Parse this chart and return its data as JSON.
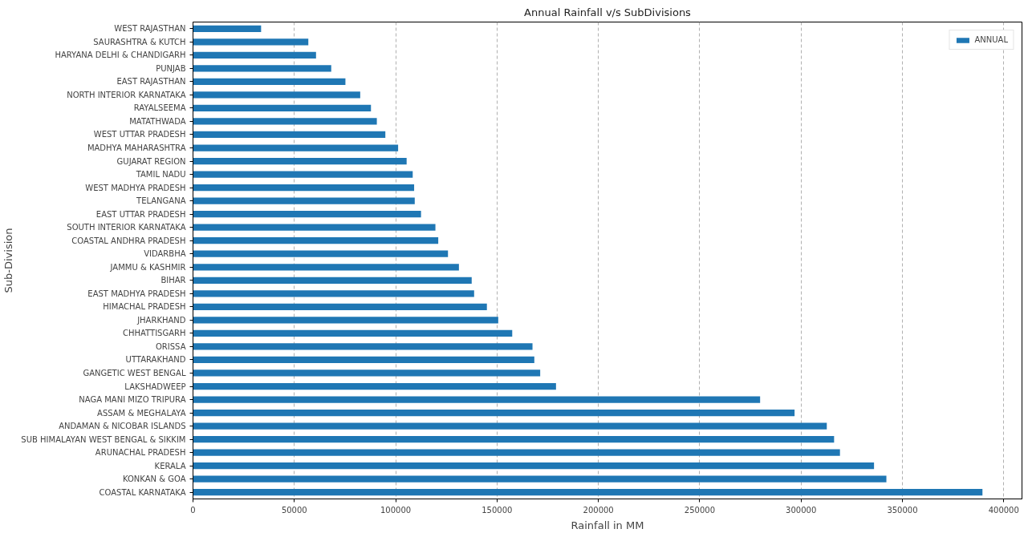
{
  "chart_data": {
    "type": "bar",
    "orientation": "horizontal",
    "title": "Annual Rainfall v/s SubDivisions",
    "xlabel": "Rainfall in MM",
    "ylabel": "Sub-Division",
    "categories": [
      "WEST RAJASTHAN",
      "SAURASHTRA & KUTCH",
      "HARYANA DELHI & CHANDIGARH",
      "PUNJAB",
      "EAST RAJASTHAN",
      "NORTH INTERIOR KARNATAKA",
      "RAYALSEEMA",
      "MATATHWADA",
      "WEST UTTAR PRADESH",
      "MADHYA MAHARASHTRA",
      "GUJARAT REGION",
      "TAMIL NADU",
      "WEST MADHYA PRADESH",
      "TELANGANA",
      "EAST UTTAR PRADESH",
      "SOUTH INTERIOR KARNATAKA",
      "COASTAL ANDHRA PRADESH",
      "VIDARBHA",
      "JAMMU & KASHMIR",
      "BIHAR",
      "EAST MADHYA PRADESH",
      "HIMACHAL PRADESH",
      "JHARKHAND",
      "CHHATTISGARH",
      "ORISSA",
      "UTTARAKHAND",
      "GANGETIC WEST BENGAL",
      "LAKSHADWEEP",
      "NAGA MANI MIZO TRIPURA",
      "ASSAM & MEGHALAYA",
      "ANDAMAN & NICOBAR ISLANDS",
      "SUB HIMALAYAN WEST BENGAL & SIKKIM",
      "ARUNACHAL PRADESH",
      "KERALA",
      "KONKAN & GOA",
      "COASTAL KARNATAKA"
    ],
    "series": [
      {
        "name": "ANNUAL",
        "color": "#1f77b4",
        "values": [
          33600,
          56900,
          60700,
          68200,
          75200,
          82500,
          87800,
          90700,
          94900,
          101200,
          105400,
          108400,
          109100,
          109400,
          112500,
          119600,
          121000,
          125800,
          131200,
          137500,
          138700,
          145000,
          150600,
          157500,
          167500,
          168400,
          171300,
          179100,
          279800,
          296800,
          312700,
          316300,
          319200,
          336000,
          342100,
          389500
        ]
      }
    ],
    "xlim": [
      0,
      409000
    ],
    "xticks": [
      0,
      50000,
      100000,
      150000,
      200000,
      250000,
      300000,
      350000,
      400000
    ],
    "grid": "x",
    "legend": "top right"
  }
}
